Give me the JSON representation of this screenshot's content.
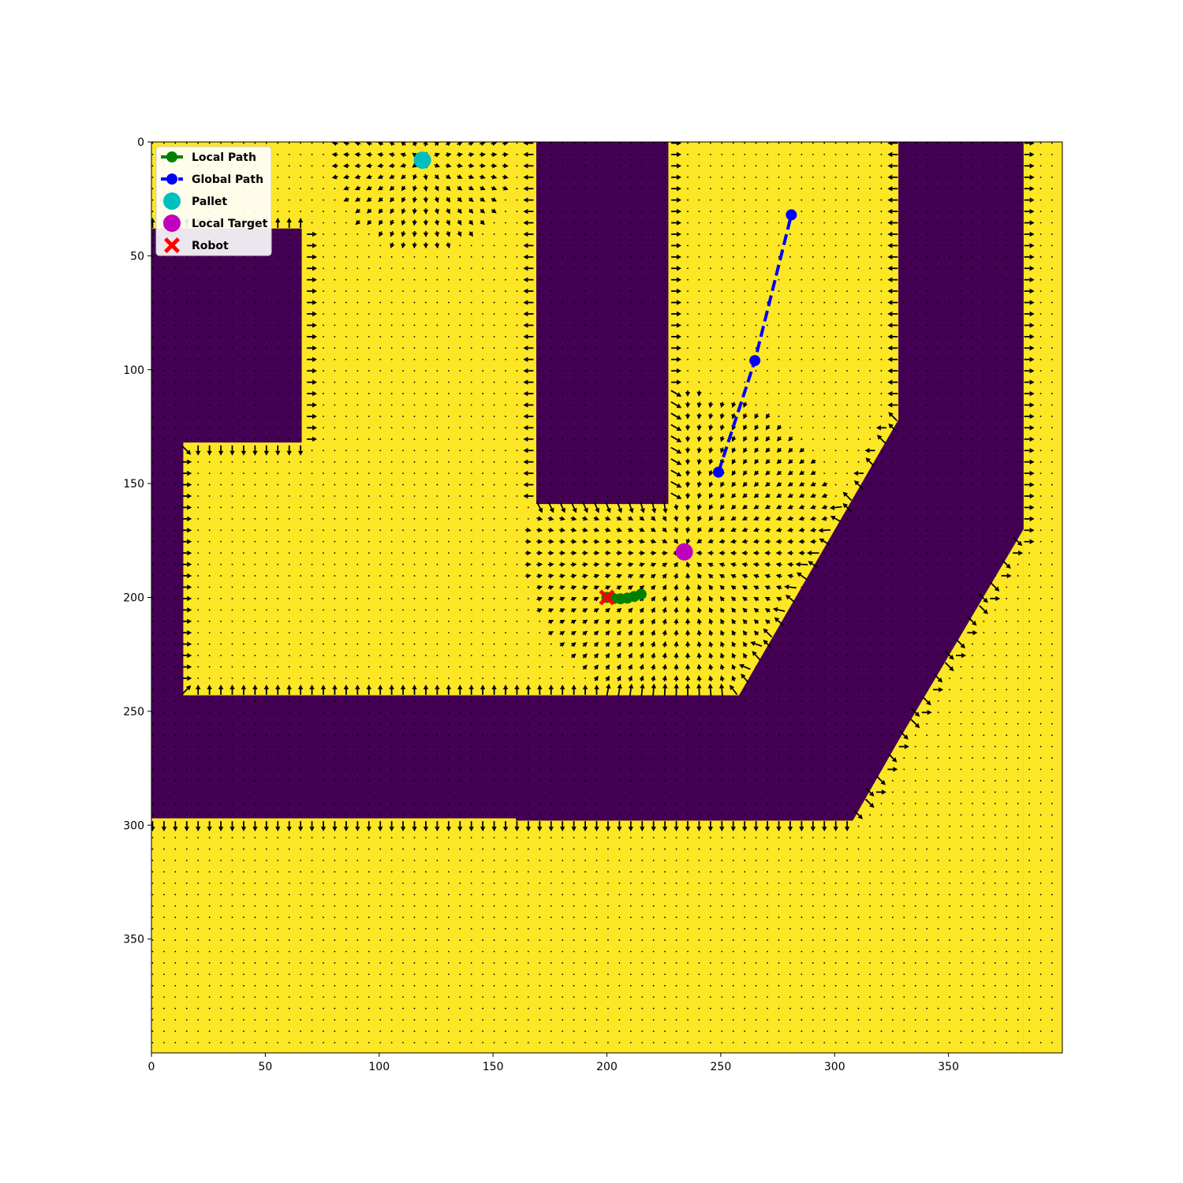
{
  "chart_data": {
    "type": "scatter",
    "title": "",
    "xlabel": "",
    "ylabel": "",
    "xlim": [
      0,
      400
    ],
    "ylim": [
      400,
      0
    ],
    "x_ticks": [
      0,
      50,
      100,
      150,
      200,
      250,
      300,
      350
    ],
    "y_ticks": [
      0,
      50,
      100,
      150,
      200,
      250,
      300,
      350
    ],
    "x_tick_labels": [
      "0",
      "50",
      "100",
      "150",
      "200",
      "250",
      "300",
      "350"
    ],
    "y_tick_labels": [
      "0",
      "50",
      "100",
      "150",
      "200",
      "250",
      "300",
      "350"
    ],
    "background_map": {
      "free_color": "#fde725",
      "obstacle_color": "#440154",
      "obstacles": [
        [
          [
            0,
            38
          ],
          [
            66,
            38
          ],
          [
            66,
            132
          ],
          [
            14,
            132
          ],
          [
            14,
            243
          ],
          [
            258,
            243
          ],
          [
            328,
            122
          ],
          [
            328,
            0
          ],
          [
            400,
            0
          ],
          [
            400,
            400
          ],
          [
            0,
            400
          ]
        ],
        [
          [
            169,
            0
          ],
          [
            227,
            0
          ],
          [
            227,
            159
          ],
          [
            169,
            159
          ]
        ],
        [
          [
            383,
            0
          ],
          [
            400,
            0
          ],
          [
            400,
            400
          ],
          [
            383,
            400
          ]
        ]
      ],
      "free_regions": [
        [
          [
            0,
            297
          ],
          [
            160,
            297
          ],
          [
            160,
            298
          ],
          [
            308,
            298
          ],
          [
            328,
            263
          ],
          [
            383,
            170
          ],
          [
            383,
            400
          ],
          [
            0,
            400
          ]
        ],
        [
          [
            383,
            170
          ],
          [
            400,
            170
          ],
          [
            400,
            400
          ],
          [
            383,
            400
          ]
        ],
        [
          [
            383,
            0
          ],
          [
            400,
            0
          ],
          [
            400,
            400
          ],
          [
            383,
            400
          ]
        ]
      ]
    },
    "vector_field": {
      "grid_step": 5,
      "attractor": [
        234,
        180
      ],
      "pallet_source": [
        119,
        8
      ],
      "arrow_color": "#000000"
    },
    "series": [
      {
        "name": "Local Path",
        "color": "#008000",
        "style": "solid",
        "marker": "circle",
        "x": [
          200,
          203,
          206,
          209,
          212,
          215
        ],
        "y": [
          200,
          200.5,
          200.6,
          200.3,
          199.6,
          198.6
        ]
      },
      {
        "name": "Global Path",
        "color": "#0000ff",
        "style": "dashed",
        "marker": "circle",
        "x": [
          249,
          265,
          281
        ],
        "y": [
          145,
          96,
          32
        ]
      },
      {
        "name": "Pallet",
        "color": "#00bfbf",
        "marker": "big-circle",
        "x": [
          119
        ],
        "y": [
          8
        ]
      },
      {
        "name": "Local Target",
        "color": "#bf00bf",
        "marker": "big-circle",
        "x": [
          234
        ],
        "y": [
          180
        ]
      },
      {
        "name": "Robot",
        "color": "#ff0000",
        "marker": "x",
        "x": [
          200
        ],
        "y": [
          200
        ]
      }
    ],
    "legend_position": "top-left",
    "grid": false
  }
}
